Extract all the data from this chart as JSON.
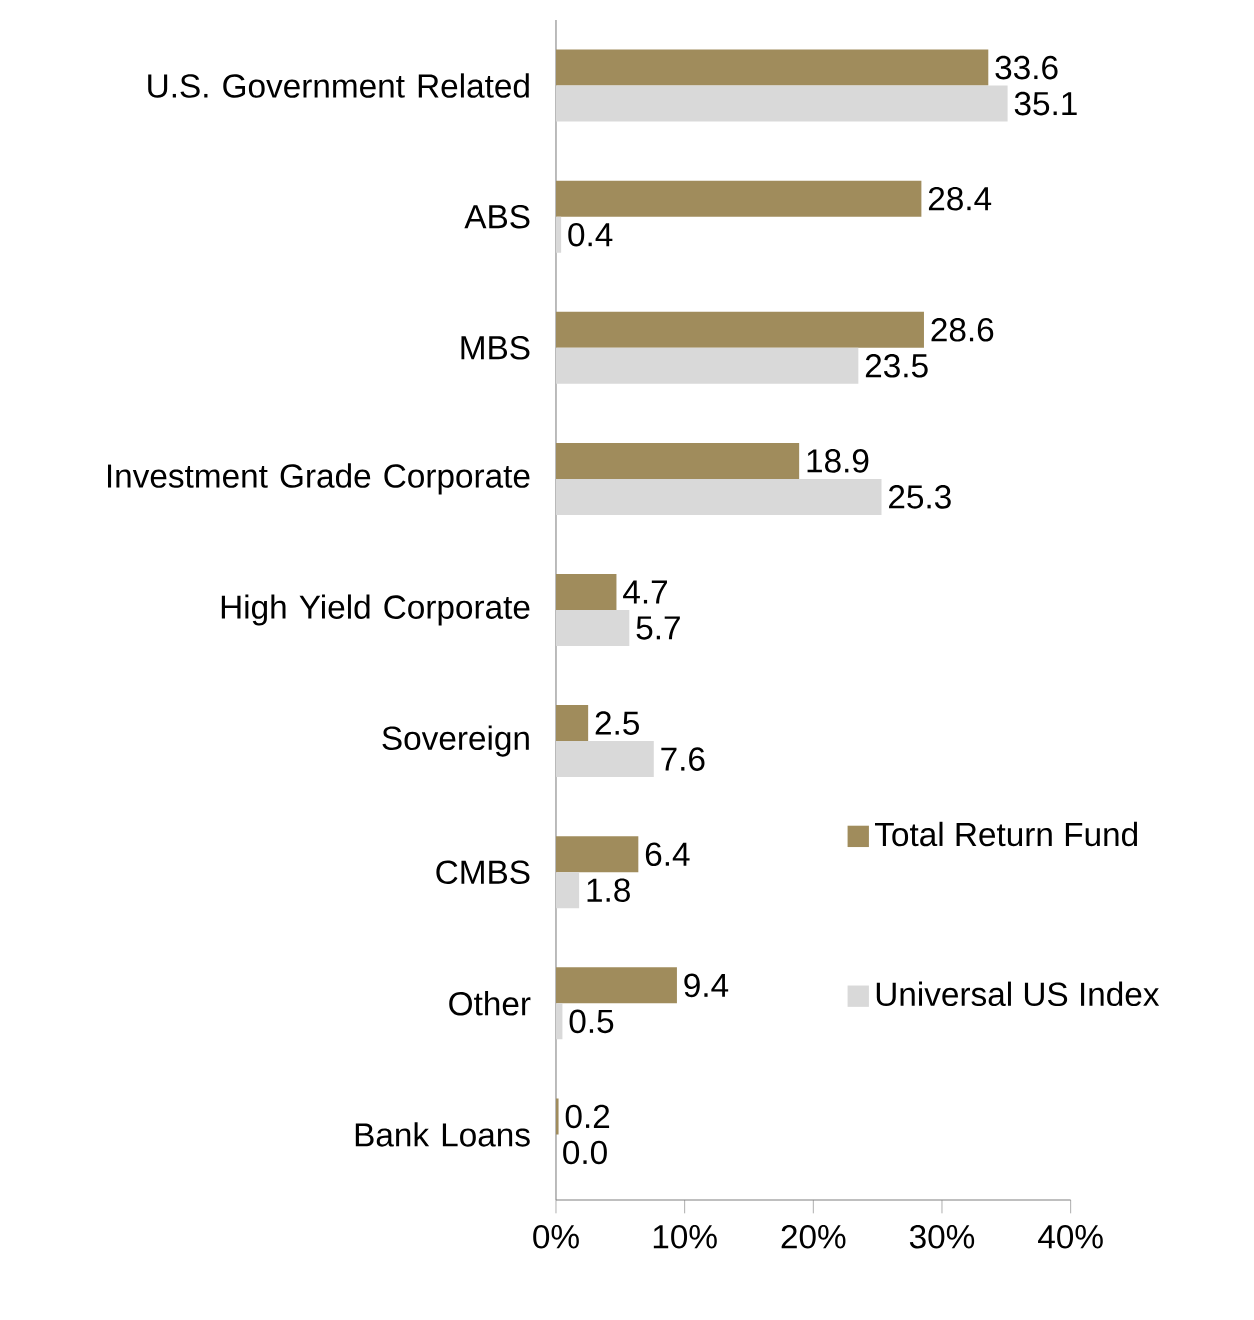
{
  "chart_data": {
    "type": "bar",
    "orientation": "horizontal",
    "categories": [
      "U.S. Government Related",
      "ABS",
      "MBS",
      "Investment Grade Corporate",
      "High Yield Corporate",
      "Sovereign",
      "CMBS",
      "Other",
      "Bank Loans"
    ],
    "series": [
      {
        "name": "Total Return Fund",
        "color": "#a08c5c",
        "values": [
          33.6,
          28.4,
          28.6,
          18.9,
          4.7,
          2.5,
          6.4,
          9.4,
          0.2
        ],
        "value_labels": [
          "33.6",
          "28.4",
          "28.6",
          "18.9",
          "4.7",
          "2.5",
          "6.4",
          "9.4",
          "0.2"
        ]
      },
      {
        "name": "Universal US Index",
        "color": "#d9d9d9",
        "values": [
          35.1,
          0.4,
          23.5,
          25.3,
          5.7,
          7.6,
          1.8,
          0.5,
          0.0
        ],
        "value_labels": [
          "35.1",
          "0.4",
          "23.5",
          "25.3",
          "5.7",
          "7.6",
          "1.8",
          "0.5",
          "0.0"
        ]
      }
    ],
    "xlim": [
      0,
      40
    ],
    "xticks": [
      {
        "value": 0,
        "label": "0%"
      },
      {
        "value": 10,
        "label": "10%"
      },
      {
        "value": 20,
        "label": "20%"
      },
      {
        "value": 30,
        "label": "30%"
      },
      {
        "value": 40,
        "label": "40%"
      }
    ],
    "legend": "bottom right"
  }
}
